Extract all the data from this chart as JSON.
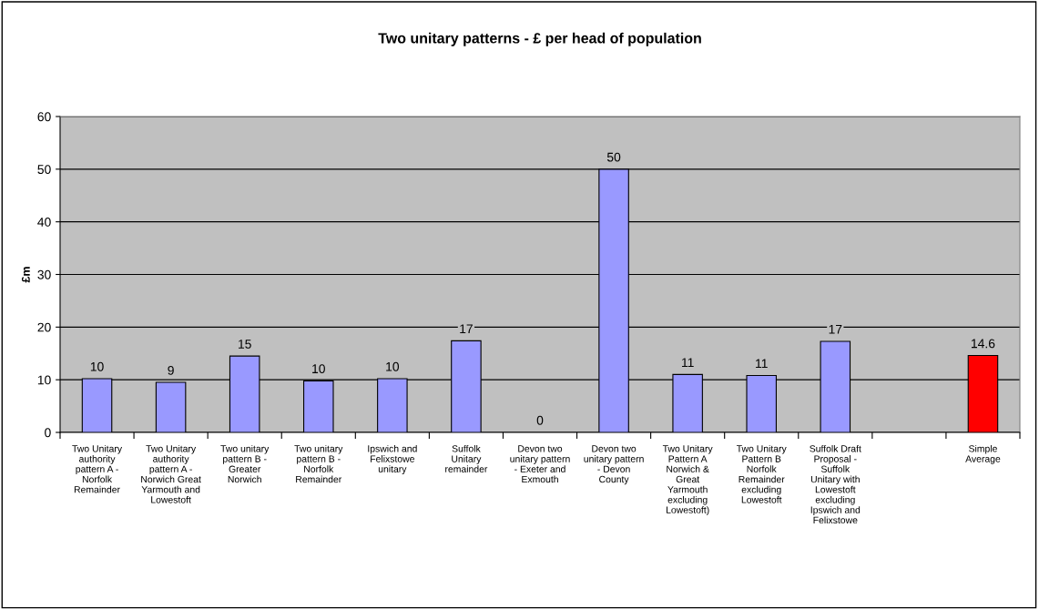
{
  "chart_data": {
    "type": "bar",
    "title": "Two unitary patterns - £ per head of population",
    "ylabel": "£m",
    "categories": [
      "Two Unitary authority pattern A - Norfolk Remainder",
      "Two Unitary authority pattern A - Norwich Great Yarmouth and Lowestoft",
      "Two unitary pattern B - Greater Norwich",
      "Two unitary pattern B - Norfolk Remainder",
      "Ipswich and Felixstowe unitary",
      "Suffolk Unitary remainder",
      "Devon two unitary pattern - Exeter and Exmouth",
      "Devon two unitary pattern - Devon County",
      "Two Unitary Pattern A Norwich & Great Yarmouth excluding Lowestoft)",
      "Two Unitary Pattern B Norfolk Remainder excluding Lowestoft",
      "Suffolk Draft Proposal - Suffolk Unitary with Lowestoft excluding Ipswich and Felixstowe",
      null,
      "Simple Average"
    ],
    "values": [
      10.2,
      9.5,
      14.5,
      9.8,
      10.2,
      17.4,
      0,
      50,
      11.0,
      10.8,
      17.3,
      null,
      14.6
    ],
    "value_labels": [
      "10",
      "9",
      "15",
      "10",
      "10",
      "17",
      "0",
      "50",
      "11",
      "11",
      "17",
      null,
      "14.6"
    ],
    "colors": [
      "#9999ff",
      "#9999ff",
      "#9999ff",
      "#9999ff",
      "#9999ff",
      "#9999ff",
      "#9999ff",
      "#9999ff",
      "#9999ff",
      "#9999ff",
      "#9999ff",
      "#9999ff",
      "#ff0000"
    ],
    "ylim": [
      0,
      60
    ],
    "yticks": [
      0,
      10,
      20,
      30,
      40,
      50,
      60
    ],
    "grid": "y",
    "legend": false
  }
}
